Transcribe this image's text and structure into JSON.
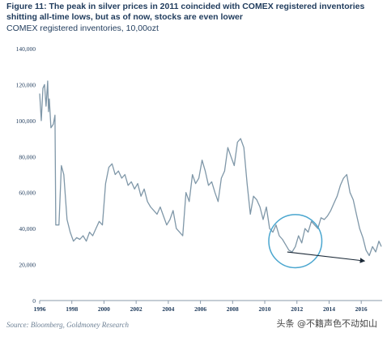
{
  "title": "Figure 11: The peak in silver prices in 2011 coincided with COMEX registered inventories shitting all-time lows, but as of now, stocks are even lower",
  "subtitle": "COMEX registered inventories, 10,00ozt",
  "source": "Source: Bloomberg, Goldmoney Research",
  "watermark": "头条 @不籍声色不动如山",
  "colors": {
    "line": "#7f97a8",
    "circle": "#4aa6cf",
    "arrow": "#1c2a38",
    "text": "#1f3b5c",
    "axis": "#8a9aaa"
  },
  "chart_data": {
    "type": "line",
    "title": "COMEX registered inventories, 10,00ozt",
    "xlabel": "",
    "ylabel": "",
    "xlim": [
      1996,
      2017.3
    ],
    "ylim": [
      0,
      140000
    ],
    "x_ticks": [
      1996,
      1998,
      2000,
      2002,
      2004,
      2006,
      2008,
      2010,
      2012,
      2014,
      2016
    ],
    "x_tick_labels": [
      "1996",
      "1998",
      "2000",
      "2002",
      "2004",
      "2006",
      "2008",
      "2010",
      "2012",
      "2014",
      "2016"
    ],
    "y_ticks": [
      0,
      20000,
      40000,
      60000,
      80000,
      100000,
      120000,
      140000
    ],
    "y_tick_labels": [
      "0",
      "20,000",
      "40,000",
      "60,000",
      "80,000",
      "100,000",
      "120,000",
      "140,000"
    ],
    "grid": false,
    "series": [
      {
        "x": [
          1996.0,
          1996.1,
          1996.2,
          1996.3,
          1996.4,
          1996.5,
          1996.55,
          1996.6,
          1996.7,
          1996.85,
          1996.95,
          1997.0,
          1997.2,
          1997.35,
          1997.5,
          1997.7,
          1997.9,
          1998.1,
          1998.3,
          1998.5,
          1998.7,
          1998.9,
          1999.1,
          1999.3,
          1999.5,
          1999.7,
          1999.9,
          2000.1,
          2000.3,
          2000.5,
          2000.7,
          2000.9,
          2001.1,
          2001.3,
          2001.5,
          2001.7,
          2001.9,
          2002.1,
          2002.3,
          2002.5,
          2002.7,
          2002.9,
          2003.1,
          2003.3,
          2003.5,
          2003.7,
          2003.9,
          2004.1,
          2004.3,
          2004.5,
          2004.7,
          2004.9,
          2005.1,
          2005.3,
          2005.5,
          2005.7,
          2005.9,
          2006.1,
          2006.3,
          2006.5,
          2006.7,
          2006.9,
          2007.1,
          2007.3,
          2007.5,
          2007.7,
          2007.9,
          2008.1,
          2008.3,
          2008.5,
          2008.7,
          2008.9,
          2009.1,
          2009.3,
          2009.5,
          2009.7,
          2009.9,
          2010.1,
          2010.3,
          2010.5,
          2010.7,
          2010.9,
          2011.1,
          2011.3,
          2011.5,
          2011.7,
          2011.9,
          2012.1,
          2012.3,
          2012.5,
          2012.7,
          2012.9,
          2013.1,
          2013.3,
          2013.5,
          2013.7,
          2013.9,
          2014.1,
          2014.3,
          2014.5,
          2014.7,
          2014.9,
          2015.1,
          2015.3,
          2015.5,
          2015.7,
          2015.9,
          2016.1,
          2016.3,
          2016.5,
          2016.7,
          2016.9,
          2017.1,
          2017.25
        ],
        "values": [
          115000,
          100000,
          118000,
          120000,
          108000,
          122000,
          105000,
          112000,
          96000,
          98000,
          103000,
          42000,
          42000,
          75000,
          70000,
          45000,
          38000,
          33000,
          35000,
          34000,
          36000,
          33000,
          38000,
          36000,
          40000,
          44000,
          42000,
          65000,
          74000,
          76000,
          70000,
          72000,
          68000,
          70000,
          64000,
          66000,
          62000,
          65000,
          58000,
          62000,
          55000,
          52000,
          50000,
          48000,
          52000,
          47000,
          42000,
          45000,
          50000,
          40000,
          38000,
          36000,
          60000,
          55000,
          70000,
          65000,
          68000,
          78000,
          72000,
          64000,
          66000,
          60000,
          55000,
          68000,
          72000,
          85000,
          80000,
          75000,
          88000,
          90000,
          85000,
          65000,
          48000,
          58000,
          56000,
          52000,
          45000,
          52000,
          40000,
          38000,
          42000,
          36000,
          34000,
          31000,
          28000,
          27000,
          30000,
          36000,
          32000,
          40000,
          38000,
          44000,
          42000,
          40000,
          46000,
          45000,
          47000,
          50000,
          54000,
          58000,
          64000,
          68000,
          70000,
          60000,
          56000,
          48000,
          40000,
          35000,
          28000,
          25000,
          30000,
          27000,
          33000,
          30000
        ]
      }
    ],
    "annotations": [
      {
        "type": "circle",
        "center": [
          2011.9,
          33000
        ],
        "radius_years": 1.65
      },
      {
        "type": "arrow",
        "from": [
          2011.4,
          27000
        ],
        "to": [
          2016.2,
          22000
        ]
      }
    ]
  }
}
